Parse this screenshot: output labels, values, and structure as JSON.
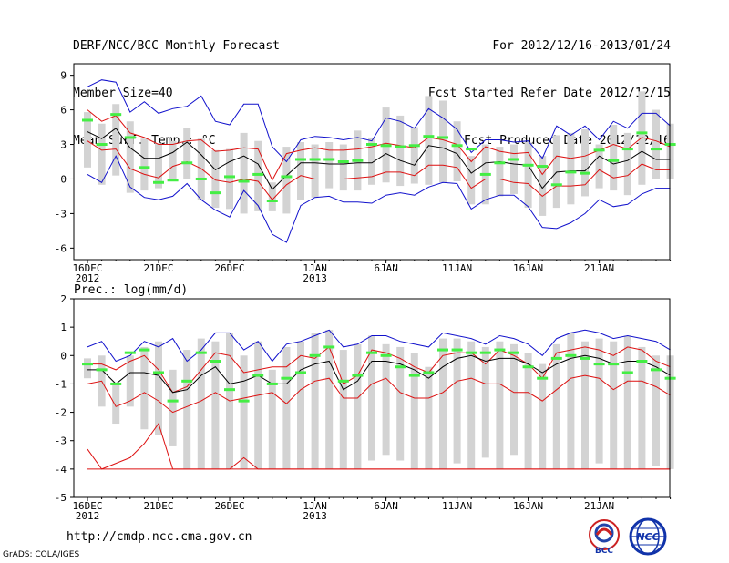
{
  "header": {
    "title": "DERF/NCC/BCC Monthly Forecast",
    "member_size": "Member Size=40",
    "variable1": "Mean Surf. Temp.: °C",
    "period": "For 2012/12/16-2013/01/24",
    "started": "Fcst Started Refer Date 2012/12/15",
    "produced": "Fcst Produced Date 2012/12/16"
  },
  "footer": {
    "url": "http://cmdp.ncc.cma.gov.cn",
    "credit": "GrADS: COLA/IGES",
    "logo1_text": "BCC",
    "logo2_text": "NCC"
  },
  "colors": {
    "box": "#d3d3d3",
    "clim": "#44ee44",
    "mean": "#000000",
    "sd": "#dd1111",
    "minmax": "#1111cc"
  },
  "chart_data": [
    {
      "type": "box-line",
      "title": "Mean Surf. Temp.: °C",
      "xlabel": "",
      "ylabel": "",
      "ylim": [
        -7,
        10
      ],
      "yticks": [
        "-6",
        "-3",
        "0",
        "3",
        "6",
        "9"
      ],
      "x_start_day": 1,
      "x_ticks": [
        {
          "day": 1,
          "label": "16DEC",
          "sub": "2012"
        },
        {
          "day": 6,
          "label": "21DEC",
          "sub": ""
        },
        {
          "day": 11,
          "label": "26DEC",
          "sub": ""
        },
        {
          "day": 17,
          "label": "1JAN",
          "sub": "2013"
        },
        {
          "day": 22,
          "label": "6JAN",
          "sub": ""
        },
        {
          "day": 27,
          "label": "11JAN",
          "sub": ""
        },
        {
          "day": 32,
          "label": "16JAN",
          "sub": ""
        },
        {
          "day": 37,
          "label": "21JAN",
          "sub": ""
        }
      ],
      "series": [
        {
          "name": "max",
          "values": [
            8.0,
            8.6,
            8.4,
            5.8,
            6.7,
            5.7,
            6.1,
            6.3,
            7.2,
            5.0,
            4.7,
            6.5,
            6.5,
            2.8,
            1.5,
            3.4,
            3.7,
            3.6,
            3.4,
            3.6,
            3.3,
            5.3,
            5.0,
            4.4,
            6.1,
            5.3,
            4.3,
            2.3,
            3.4,
            3.4,
            3.2,
            3.3,
            1.8,
            4.6,
            3.8,
            4.6,
            3.4,
            5.0,
            4.4,
            5.7,
            5.7,
            4.6
          ]
        },
        {
          "name": "mean+sd",
          "values": [
            6.0,
            5.0,
            5.5,
            4.0,
            3.6,
            3.0,
            3.0,
            3.3,
            3.4,
            2.4,
            2.5,
            2.7,
            2.6,
            -0.1,
            2.2,
            2.5,
            2.7,
            2.5,
            2.5,
            2.6,
            2.8,
            3.1,
            2.9,
            2.7,
            3.6,
            3.4,
            3.0,
            1.5,
            2.8,
            2.4,
            2.2,
            2.3,
            0.4,
            2.0,
            1.8,
            2.0,
            2.5,
            3.0,
            2.6,
            3.6,
            3.3,
            2.8
          ]
        },
        {
          "name": "mean",
          "values": [
            4.1,
            3.5,
            4.4,
            2.7,
            1.8,
            1.8,
            2.3,
            3.2,
            2.1,
            0.8,
            1.5,
            2.0,
            1.3,
            -0.9,
            0.3,
            1.4,
            1.4,
            1.3,
            1.3,
            1.4,
            1.4,
            2.2,
            1.6,
            1.2,
            2.9,
            2.7,
            2.2,
            0.5,
            1.4,
            1.5,
            1.3,
            1.2,
            -0.8,
            0.6,
            0.7,
            0.7,
            2.0,
            1.3,
            1.6,
            2.4,
            1.7,
            1.7
          ]
        },
        {
          "name": "mean-sd",
          "values": [
            3.3,
            2.5,
            2.6,
            0.9,
            0.4,
            0.1,
            1.1,
            1.5,
            0.9,
            -0.1,
            -0.3,
            0.0,
            -0.2,
            -1.8,
            -0.5,
            0.3,
            0.0,
            0.0,
            0.0,
            0.1,
            0.2,
            0.6,
            0.6,
            0.3,
            1.2,
            1.2,
            1.0,
            -0.8,
            0.0,
            0.0,
            -0.3,
            -0.4,
            -1.5,
            -0.6,
            -0.6,
            -0.5,
            0.8,
            0.1,
            0.3,
            1.3,
            0.8,
            0.8
          ]
        },
        {
          "name": "min",
          "values": [
            0.4,
            -0.3,
            2.0,
            -0.7,
            -1.6,
            -1.8,
            -1.5,
            -0.4,
            -1.8,
            -2.7,
            -3.3,
            -1.0,
            -2.3,
            -4.8,
            -5.5,
            -2.3,
            -1.6,
            -1.5,
            -2.0,
            -2.0,
            -2.1,
            -1.4,
            -1.2,
            -1.4,
            -0.7,
            -0.3,
            -0.4,
            -2.6,
            -1.8,
            -1.4,
            -1.4,
            -2.4,
            -4.2,
            -4.3,
            -3.8,
            -3.0,
            -1.8,
            -2.4,
            -2.2,
            -1.3,
            -0.8,
            -0.8
          ]
        },
        {
          "name": "box_high",
          "values": [
            5.8,
            4.8,
            6.5,
            5.0,
            3.5,
            3.1,
            3.3,
            4.4,
            3.5,
            2.5,
            2.6,
            4.0,
            3.3,
            -0.3,
            2.8,
            3.2,
            3.0,
            3.2,
            3.0,
            4.2,
            3.6,
            6.2,
            5.5,
            4.5,
            7.2,
            6.8,
            5.0,
            2.0,
            3.0,
            2.8,
            3.0,
            3.2,
            2.0,
            3.8,
            4.0,
            4.3,
            3.0,
            4.7,
            4.0,
            7.6,
            6.0,
            4.8
          ]
        },
        {
          "name": "box_low",
          "values": [
            1.0,
            -0.5,
            0.3,
            -1.2,
            -1.0,
            -0.8,
            -0.2,
            0.0,
            -1.8,
            -2.5,
            -2.6,
            -3.0,
            -2.8,
            -2.8,
            -3.0,
            -1.8,
            -1.6,
            -0.8,
            -1.0,
            -1.0,
            -0.5,
            -0.3,
            -0.6,
            -0.4,
            -0.5,
            -0.3,
            -0.2,
            -2.2,
            -2.2,
            -1.5,
            -1.3,
            -2.5,
            -3.2,
            -2.5,
            -2.2,
            -1.5,
            -0.8,
            -1.0,
            -1.4,
            -0.5,
            0.0,
            0.0
          ]
        },
        {
          "name": "climatology",
          "values": [
            5.1,
            3.0,
            5.6,
            3.6,
            1.0,
            -0.3,
            -0.1,
            1.4,
            0.0,
            -1.2,
            0.2,
            -0.2,
            0.4,
            -1.9,
            0.2,
            1.7,
            1.7,
            1.7,
            1.5,
            1.6,
            3.0,
            2.9,
            2.8,
            2.9,
            3.7,
            3.6,
            2.9,
            2.6,
            0.4,
            1.4,
            1.7,
            1.2,
            1.1,
            -0.5,
            0.6,
            0.5,
            2.5,
            1.6,
            2.6,
            4.0,
            2.6,
            3.0
          ]
        }
      ]
    },
    {
      "type": "box-line",
      "title": "Prec.: log(mm/d)",
      "xlabel": "",
      "ylabel": "",
      "ylim": [
        -5,
        2
      ],
      "yticks": [
        "-5",
        "-4",
        "-3",
        "-2",
        "-1",
        "0",
        "1",
        "2"
      ],
      "x_start_day": 1,
      "x_ticks": [
        {
          "day": 1,
          "label": "16DEC",
          "sub": "2012"
        },
        {
          "day": 6,
          "label": "21DEC",
          "sub": ""
        },
        {
          "day": 11,
          "label": "26DEC",
          "sub": ""
        },
        {
          "day": 17,
          "label": "1JAN",
          "sub": "2013"
        },
        {
          "day": 22,
          "label": "6JAN",
          "sub": ""
        },
        {
          "day": 27,
          "label": "11JAN",
          "sub": ""
        },
        {
          "day": 32,
          "label": "16JAN",
          "sub": ""
        },
        {
          "day": 37,
          "label": "21JAN",
          "sub": ""
        }
      ],
      "series": [
        {
          "name": "max",
          "values": [
            0.3,
            0.5,
            -0.2,
            0.0,
            0.5,
            0.3,
            0.6,
            -0.2,
            0.2,
            0.8,
            0.8,
            0.2,
            0.5,
            -0.2,
            0.4,
            0.5,
            0.7,
            0.9,
            0.3,
            0.4,
            0.7,
            0.7,
            0.5,
            0.4,
            0.3,
            0.8,
            0.7,
            0.6,
            0.4,
            0.7,
            0.6,
            0.4,
            0.0,
            0.6,
            0.8,
            0.9,
            0.8,
            0.6,
            0.7,
            0.6,
            0.5,
            0.2
          ]
        },
        {
          "name": "mean+sd",
          "values": [
            -0.3,
            -0.3,
            -0.5,
            -0.2,
            0.0,
            -0.5,
            -1.3,
            -1.1,
            -0.5,
            0.1,
            0.0,
            -0.6,
            -0.5,
            -0.4,
            -0.4,
            0.0,
            -0.1,
            0.3,
            -1.0,
            -0.7,
            0.2,
            0.1,
            -0.1,
            -0.4,
            -0.6,
            0.0,
            0.1,
            0.1,
            -0.3,
            0.2,
            0.0,
            -0.3,
            -0.8,
            0.1,
            0.2,
            0.3,
            0.2,
            0.0,
            0.3,
            0.2,
            -0.2,
            -0.4
          ]
        },
        {
          "name": "mean",
          "values": [
            -0.5,
            -0.5,
            -1.0,
            -0.6,
            -0.6,
            -0.7,
            -1.3,
            -1.2,
            -0.7,
            -0.4,
            -1.0,
            -0.9,
            -0.7,
            -1.0,
            -1.0,
            -0.5,
            -0.3,
            -0.2,
            -1.2,
            -0.9,
            -0.2,
            -0.2,
            -0.3,
            -0.5,
            -0.8,
            -0.4,
            -0.1,
            0.0,
            -0.2,
            -0.1,
            -0.1,
            -0.3,
            -0.6,
            -0.3,
            -0.1,
            0.0,
            -0.1,
            -0.3,
            -0.2,
            -0.2,
            -0.4,
            -0.7
          ]
        },
        {
          "name": "mean-sd",
          "values": [
            -1.0,
            -0.9,
            -1.8,
            -1.6,
            -1.3,
            -1.6,
            -2.0,
            -1.8,
            -1.6,
            -1.3,
            -1.6,
            -1.5,
            -1.4,
            -1.3,
            -1.7,
            -1.2,
            -0.9,
            -0.8,
            -1.5,
            -1.5,
            -1.0,
            -0.8,
            -1.3,
            -1.5,
            -1.5,
            -1.3,
            -0.9,
            -0.8,
            -1.0,
            -1.0,
            -1.3,
            -1.3,
            -1.6,
            -1.2,
            -0.8,
            -0.7,
            -0.8,
            -1.2,
            -0.9,
            -0.9,
            -1.1,
            -1.4
          ]
        },
        {
          "name": "min",
          "values": [
            -3.3,
            -4.0,
            -3.8,
            -3.6,
            -3.1,
            -2.4,
            -4.0,
            -4.0,
            -4.0,
            -4.0,
            -4.0,
            -3.6,
            -4.0,
            -4.0,
            -4.0,
            -4.0,
            -4.0,
            -4.0,
            -4.0,
            -4.0,
            -4.0,
            -4.0,
            -4.0,
            -4.0,
            -4.0,
            -4.0,
            -4.0,
            -4.0,
            -4.0,
            -4.0,
            -4.0,
            -4.0,
            -4.0,
            -4.0,
            -4.0,
            -4.0,
            -4.0,
            -4.0,
            -4.0,
            -4.0,
            -4.0,
            -4.0
          ]
        },
        {
          "name": "floor",
          "values": [
            -4.0,
            -4.0,
            -4.0,
            -4.0,
            -4.0,
            -4.0,
            -4.0,
            -4.0,
            -4.0,
            -4.0,
            -4.0,
            -4.0,
            -4.0,
            -4.0,
            -4.0,
            -4.0,
            -4.0,
            -4.0,
            -4.0,
            -4.0,
            -4.0,
            -4.0,
            -4.0,
            -4.0,
            -4.0,
            -4.0,
            -4.0,
            -4.0,
            -4.0,
            -4.0,
            -4.0,
            -4.0,
            -4.0,
            -4.0,
            -4.0,
            -4.0,
            -4.0,
            -4.0,
            -4.0,
            -4.0,
            -4.0,
            -4.0
          ]
        },
        {
          "name": "box_high",
          "values": [
            -0.1,
            0.0,
            -1.0,
            0.0,
            0.3,
            0.5,
            -0.5,
            0.2,
            0.6,
            0.5,
            0.8,
            0.0,
            0.5,
            -0.5,
            0.3,
            0.5,
            0.8,
            0.9,
            0.2,
            0.4,
            0.7,
            0.4,
            0.3,
            0.1,
            -0.4,
            0.6,
            0.6,
            0.5,
            0.3,
            0.5,
            0.4,
            0.1,
            -0.3,
            0.4,
            0.8,
            0.5,
            0.6,
            0.5,
            0.7,
            0.3,
            0.0,
            0.0
          ]
        },
        {
          "name": "box_low",
          "values": [
            -0.8,
            -1.8,
            -2.4,
            -1.8,
            -2.6,
            -2.8,
            -3.2,
            -4.0,
            -4.0,
            -4.0,
            -4.0,
            -4.0,
            -4.0,
            -4.0,
            -4.0,
            -4.0,
            -4.0,
            -4.0,
            -4.0,
            -4.0,
            -3.7,
            -3.5,
            -3.7,
            -4.0,
            -4.0,
            -4.0,
            -3.8,
            -4.0,
            -3.6,
            -4.0,
            -3.5,
            -4.0,
            -4.0,
            -4.0,
            -4.0,
            -4.0,
            -3.8,
            -4.0,
            -4.0,
            -4.0,
            -3.9,
            -4.0
          ]
        },
        {
          "name": "climatology",
          "values": [
            -0.3,
            -0.5,
            -1.0,
            0.1,
            0.2,
            -0.6,
            -1.6,
            -0.9,
            0.1,
            -0.2,
            -1.2,
            -1.6,
            -0.7,
            -1.0,
            -0.8,
            -0.6,
            0.0,
            0.3,
            -0.9,
            -0.7,
            0.1,
            0.0,
            -0.4,
            -0.7,
            -0.6,
            0.2,
            0.2,
            0.1,
            0.1,
            0.2,
            0.1,
            -0.4,
            -0.8,
            -0.1,
            0.0,
            -0.1,
            -0.3,
            -0.3,
            -0.6,
            -0.2,
            -0.5,
            -0.8
          ]
        }
      ]
    }
  ]
}
